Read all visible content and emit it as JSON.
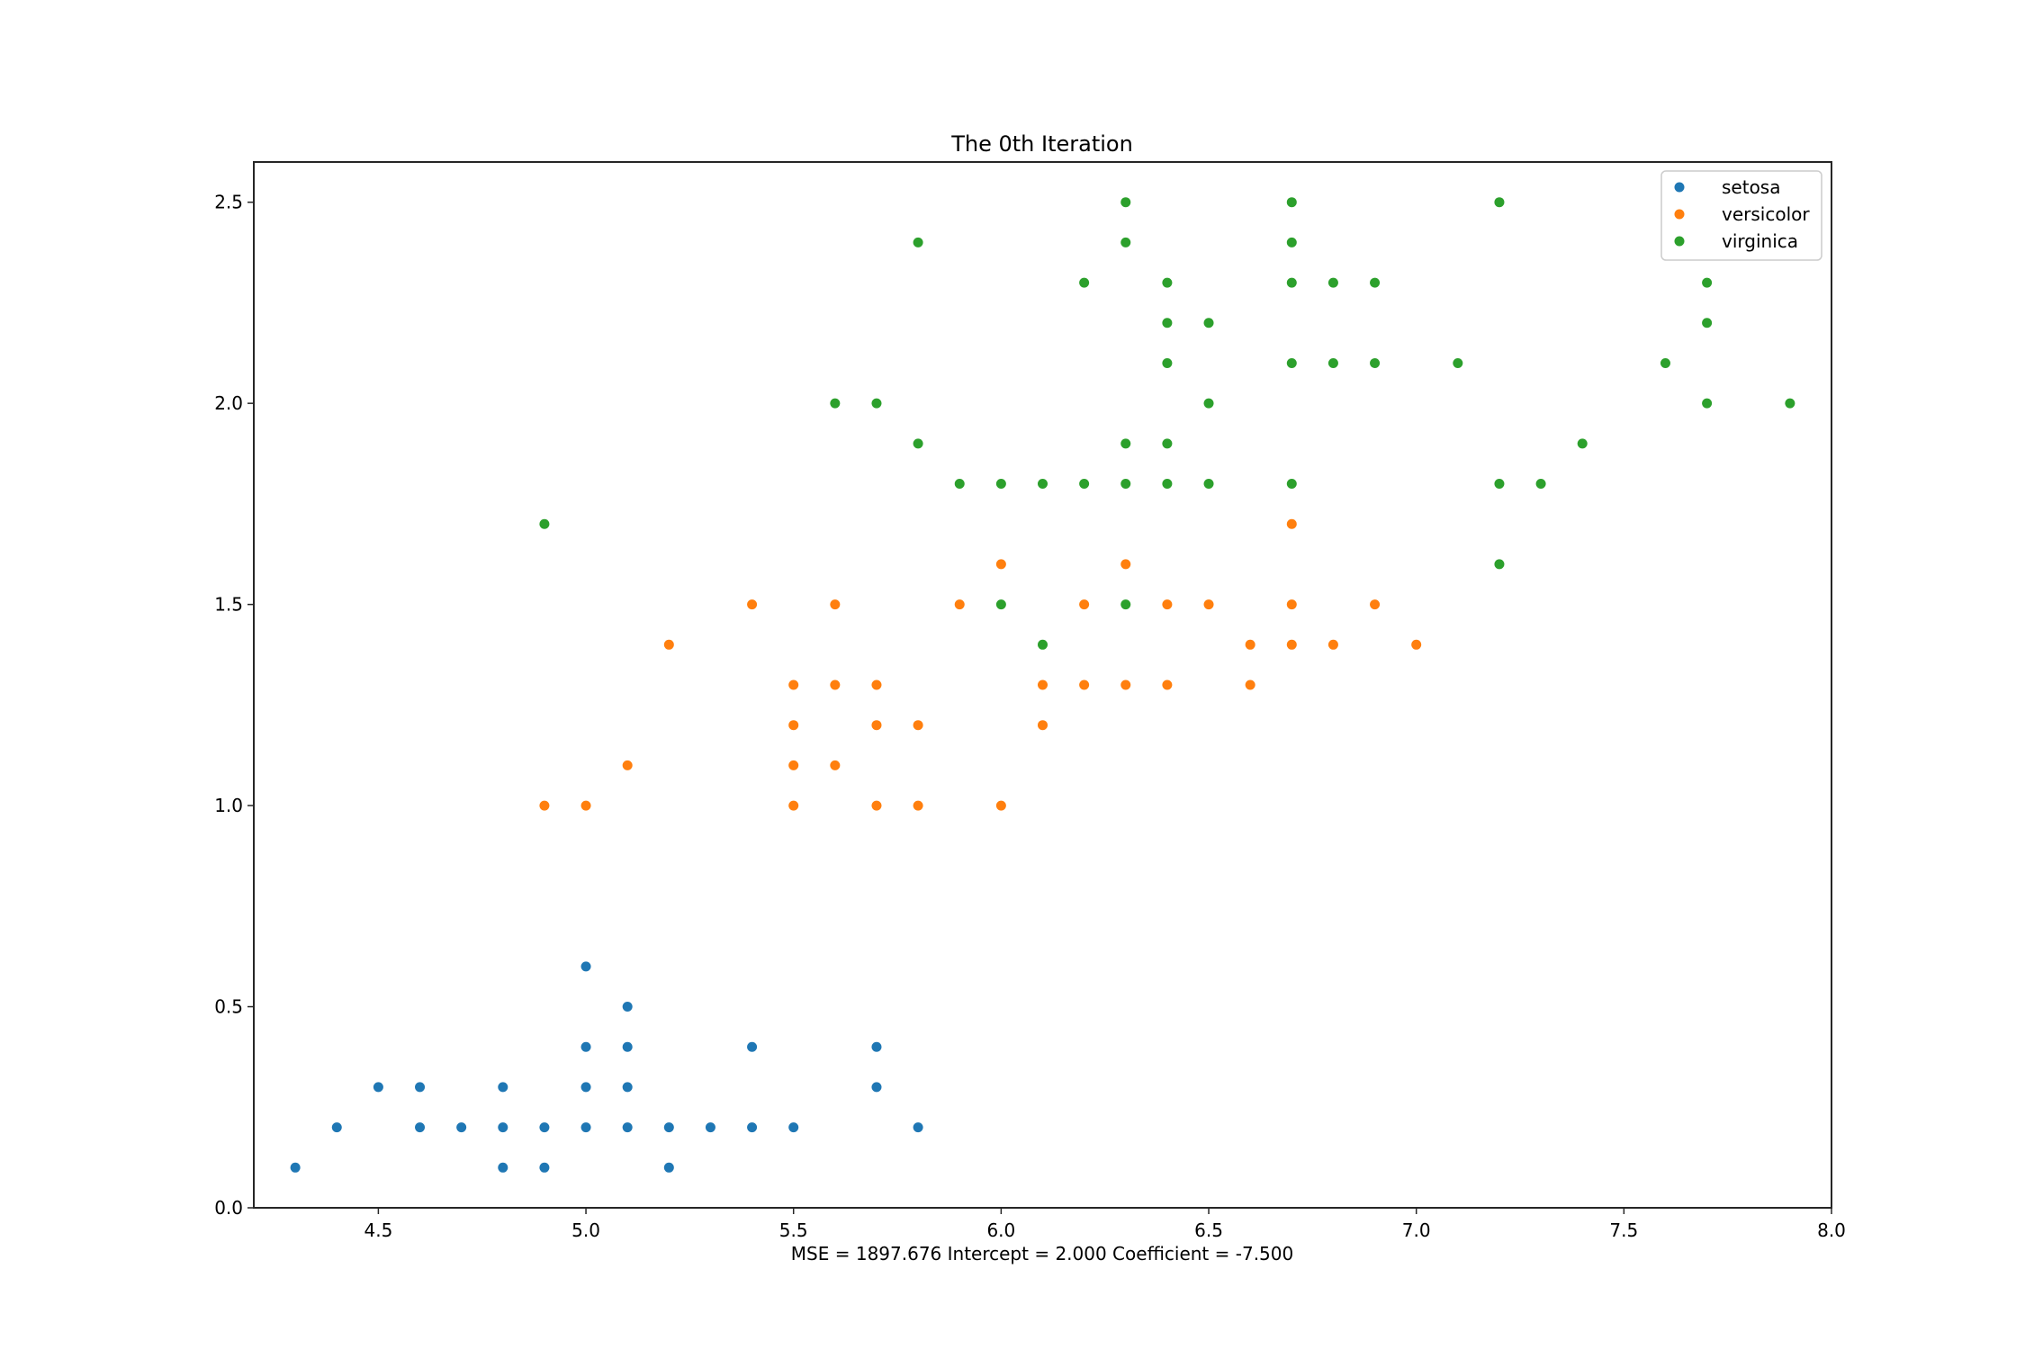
{
  "figure": {
    "title": "The 0th Iteration",
    "xlabel": "MSE = 1897.676   Intercept = 2.000   Coefficient = -7.500"
  },
  "stats": {
    "mse": "1897.676",
    "intercept": "2.000",
    "coefficient": "-7.500"
  },
  "legend": {
    "position": "upper right",
    "items": [
      {
        "label": "setosa",
        "color": "#1f77b4"
      },
      {
        "label": "versicolor",
        "color": "#ff7f0e"
      },
      {
        "label": "virginica",
        "color": "#2ca02c"
      }
    ]
  },
  "axes": {
    "xticks": [
      "4.5",
      "5.0",
      "5.5",
      "6.0",
      "6.5",
      "7.0",
      "7.5",
      "8.0"
    ],
    "yticks": [
      "0.0",
      "0.5",
      "1.0",
      "1.5",
      "2.0",
      "2.5"
    ]
  },
  "chart_data": {
    "type": "scatter",
    "title": "The 0th Iteration",
    "xlabel": "MSE = 1897.676   Intercept = 2.000   Coefficient = -7.500",
    "ylabel": "",
    "xlim": [
      4.2,
      8.0
    ],
    "ylim": [
      0.0,
      2.6
    ],
    "grid": false,
    "legend_position": "upper right",
    "xticks": [
      4.5,
      5.0,
      5.5,
      6.0,
      6.5,
      7.0,
      7.5,
      8.0
    ],
    "yticks": [
      0.0,
      0.5,
      1.0,
      1.5,
      2.0,
      2.5
    ],
    "series": [
      {
        "name": "setosa",
        "color": "#1f77b4",
        "points": [
          [
            4.3,
            0.1
          ],
          [
            4.4,
            0.2
          ],
          [
            4.5,
            0.3
          ],
          [
            4.6,
            0.3
          ],
          [
            4.6,
            0.2
          ],
          [
            4.7,
            0.2
          ],
          [
            4.8,
            0.3
          ],
          [
            4.8,
            0.2
          ],
          [
            4.8,
            0.1
          ],
          [
            4.9,
            0.2
          ],
          [
            4.9,
            0.1
          ],
          [
            5.0,
            0.6
          ],
          [
            5.0,
            0.4
          ],
          [
            5.0,
            0.3
          ],
          [
            5.0,
            0.2
          ],
          [
            5.1,
            0.5
          ],
          [
            5.1,
            0.4
          ],
          [
            5.1,
            0.3
          ],
          [
            5.1,
            0.2
          ],
          [
            5.2,
            0.2
          ],
          [
            5.2,
            0.1
          ],
          [
            5.3,
            0.2
          ],
          [
            5.4,
            0.4
          ],
          [
            5.4,
            0.2
          ],
          [
            5.5,
            0.2
          ],
          [
            5.7,
            0.4
          ],
          [
            5.7,
            0.3
          ],
          [
            5.8,
            0.2
          ]
        ]
      },
      {
        "name": "versicolor",
        "color": "#ff7f0e",
        "points": [
          [
            4.9,
            1.0
          ],
          [
            5.0,
            1.0
          ],
          [
            5.1,
            1.1
          ],
          [
            5.2,
            1.4
          ],
          [
            5.4,
            1.5
          ],
          [
            5.5,
            1.3
          ],
          [
            5.5,
            1.2
          ],
          [
            5.5,
            1.1
          ],
          [
            5.5,
            1.0
          ],
          [
            5.6,
            1.5
          ],
          [
            5.6,
            1.3
          ],
          [
            5.6,
            1.1
          ],
          [
            5.7,
            1.3
          ],
          [
            5.7,
            1.2
          ],
          [
            5.7,
            1.0
          ],
          [
            5.8,
            1.2
          ],
          [
            5.8,
            1.0
          ],
          [
            5.9,
            1.5
          ],
          [
            6.0,
            1.6
          ],
          [
            6.0,
            1.0
          ],
          [
            6.1,
            1.3
          ],
          [
            6.1,
            1.2
          ],
          [
            6.2,
            1.5
          ],
          [
            6.2,
            1.3
          ],
          [
            6.3,
            1.6
          ],
          [
            6.3,
            1.3
          ],
          [
            6.4,
            1.5
          ],
          [
            6.4,
            1.3
          ],
          [
            6.5,
            1.5
          ],
          [
            6.6,
            1.4
          ],
          [
            6.6,
            1.3
          ],
          [
            6.7,
            1.7
          ],
          [
            6.7,
            1.5
          ],
          [
            6.7,
            1.4
          ],
          [
            6.8,
            1.4
          ],
          [
            6.9,
            1.5
          ],
          [
            7.0,
            1.4
          ]
        ]
      },
      {
        "name": "virginica",
        "color": "#2ca02c",
        "points": [
          [
            4.9,
            1.7
          ],
          [
            5.6,
            2.0
          ],
          [
            5.7,
            2.0
          ],
          [
            5.8,
            2.4
          ],
          [
            5.8,
            1.9
          ],
          [
            5.9,
            1.8
          ],
          [
            6.0,
            1.8
          ],
          [
            6.0,
            1.5
          ],
          [
            6.1,
            1.8
          ],
          [
            6.1,
            1.4
          ],
          [
            6.2,
            2.3
          ],
          [
            6.2,
            1.8
          ],
          [
            6.3,
            2.5
          ],
          [
            6.3,
            2.4
          ],
          [
            6.3,
            1.9
          ],
          [
            6.3,
            1.8
          ],
          [
            6.3,
            1.5
          ],
          [
            6.4,
            2.3
          ],
          [
            6.4,
            2.2
          ],
          [
            6.4,
            2.1
          ],
          [
            6.4,
            1.9
          ],
          [
            6.4,
            1.8
          ],
          [
            6.5,
            2.2
          ],
          [
            6.5,
            2.0
          ],
          [
            6.5,
            1.8
          ],
          [
            6.7,
            2.5
          ],
          [
            6.7,
            2.4
          ],
          [
            6.7,
            2.3
          ],
          [
            6.7,
            2.1
          ],
          [
            6.7,
            1.8
          ],
          [
            6.8,
            2.3
          ],
          [
            6.8,
            2.1
          ],
          [
            6.9,
            2.3
          ],
          [
            6.9,
            2.1
          ],
          [
            7.1,
            2.1
          ],
          [
            7.2,
            2.5
          ],
          [
            7.2,
            1.8
          ],
          [
            7.2,
            1.6
          ],
          [
            7.3,
            1.8
          ],
          [
            7.4,
            1.9
          ],
          [
            7.6,
            2.1
          ],
          [
            7.7,
            2.3
          ],
          [
            7.7,
            2.2
          ],
          [
            7.7,
            2.0
          ],
          [
            7.9,
            2.0
          ]
        ]
      }
    ]
  }
}
